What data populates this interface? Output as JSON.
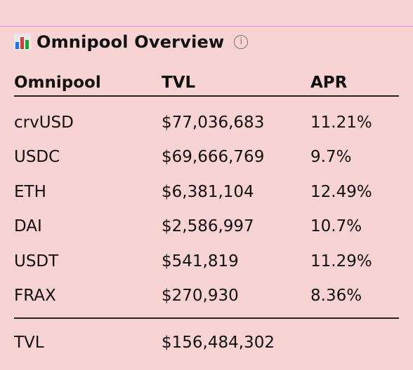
{
  "header": {
    "title": "Omnipool Overview",
    "icon": "bar-chart-icon",
    "info_glyph": "i",
    "icon_colors": [
      "#2b6fe0",
      "#e23b2e",
      "#2c9b3e"
    ]
  },
  "table": {
    "columns": [
      "Omnipool",
      "TVL",
      "APR"
    ],
    "rows": [
      {
        "name": "crvUSD",
        "tvl": "$77,036,683",
        "apr": "11.21%"
      },
      {
        "name": "USDC",
        "tvl": "$69,666,769",
        "apr": "9.7%"
      },
      {
        "name": "ETH",
        "tvl": "$6,381,104",
        "apr": "12.49%"
      },
      {
        "name": "DAI",
        "tvl": "$2,586,997",
        "apr": "10.7%"
      },
      {
        "name": "USDT",
        "tvl": "$541,819",
        "apr": "11.29%"
      },
      {
        "name": "FRAX",
        "tvl": "$270,930",
        "apr": "8.36%"
      }
    ],
    "total": {
      "label": "TVL",
      "value": "$156,484,302"
    }
  }
}
